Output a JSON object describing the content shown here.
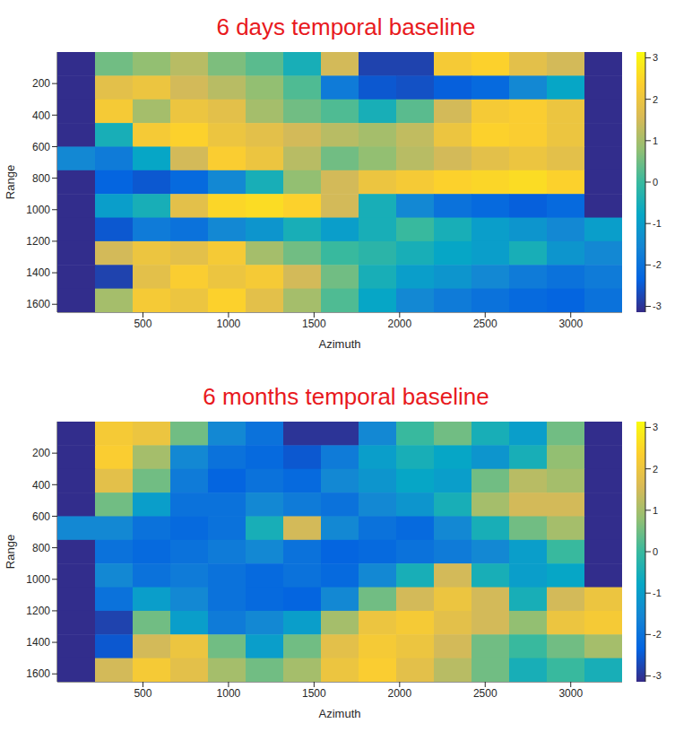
{
  "chart_data": [
    {
      "type": "heatmap",
      "title": "6 days temporal baseline",
      "xlabel": "Azimuth",
      "ylabel": "Range",
      "xlim": [
        0,
        3300
      ],
      "xticks": [
        500,
        1000,
        1500,
        2000,
        2500,
        3000
      ],
      "ylim": [
        0,
        1650
      ],
      "yticks": [
        200,
        400,
        600,
        800,
        1000,
        1200,
        1400,
        1600
      ],
      "x": [
        110,
        330,
        550,
        770,
        990,
        1210,
        1430,
        1650,
        1870,
        2090,
        2310,
        2530,
        2750,
        2970,
        3190
      ],
      "y": [
        75,
        225,
        375,
        525,
        675,
        825,
        975,
        1125,
        1275,
        1425,
        1575
      ],
      "cells": [
        [
          -3.1,
          0.5,
          0.8,
          1.2,
          0.6,
          0.3,
          -0.5,
          1.5,
          -2.8,
          -2.8,
          2.2,
          2.4,
          1.8,
          1.5,
          -3.1
        ],
        [
          -3.1,
          1.8,
          2.0,
          1.5,
          1.2,
          0.8,
          0.2,
          -1.8,
          -2.5,
          -2.6,
          -2.4,
          -2.2,
          -1.5,
          -0.8,
          -3.1
        ],
        [
          -3.1,
          2.2,
          1.0,
          2.0,
          1.8,
          1.0,
          0.5,
          0.2,
          -0.5,
          0.3,
          1.5,
          2.2,
          2.3,
          2.0,
          -3.1
        ],
        [
          -3.1,
          -0.5,
          2.2,
          2.4,
          2.0,
          1.8,
          1.5,
          1.2,
          1.0,
          1.3,
          2.0,
          2.4,
          2.3,
          2.0,
          -3.1
        ],
        [
          -1.5,
          -1.8,
          -0.8,
          1.5,
          2.3,
          2.0,
          1.2,
          0.5,
          0.8,
          1.2,
          1.5,
          1.8,
          2.0,
          1.8,
          -3.1
        ],
        [
          -3.1,
          -2.3,
          -2.5,
          -2.2,
          -1.5,
          -0.5,
          0.8,
          1.5,
          2.0,
          2.2,
          2.4,
          2.5,
          2.6,
          2.4,
          -3.1
        ],
        [
          -3.1,
          -1.0,
          -0.5,
          1.8,
          2.5,
          2.6,
          2.4,
          1.5,
          -0.5,
          -1.5,
          -2.0,
          -2.2,
          -2.4,
          -2.2,
          -3.1
        ],
        [
          -3.1,
          -2.5,
          -1.8,
          -2.0,
          -1.5,
          -1.2,
          -0.5,
          -1.0,
          -0.5,
          0.0,
          -0.5,
          -1.0,
          -1.2,
          -1.5,
          -1.0
        ],
        [
          -3.1,
          1.5,
          2.0,
          1.8,
          2.2,
          1.0,
          0.5,
          0.0,
          -0.2,
          -0.5,
          -0.8,
          -1.0,
          -0.5,
          -1.2,
          -1.5
        ],
        [
          -3.1,
          -2.8,
          1.8,
          2.3,
          2.0,
          2.2,
          1.5,
          0.5,
          -0.5,
          -1.0,
          -1.2,
          -1.5,
          -1.8,
          -2.0,
          -1.8
        ],
        [
          -3.1,
          1.0,
          2.2,
          2.0,
          2.4,
          1.8,
          1.0,
          0.2,
          -0.8,
          -1.5,
          -1.8,
          -2.0,
          -2.2,
          -2.3,
          -2.0
        ]
      ],
      "colorbar_lim": [
        -3.14,
        3.14
      ],
      "colorbar_ticks": [
        -3,
        -2,
        -1,
        0,
        1,
        2,
        3
      ]
    },
    {
      "type": "heatmap",
      "title": "6 months temporal baseline",
      "xlabel": "Azimuth",
      "ylabel": "Range",
      "xlim": [
        0,
        3300
      ],
      "xticks": [
        500,
        1000,
        1500,
        2000,
        2500,
        3000
      ],
      "ylim": [
        0,
        1650
      ],
      "yticks": [
        200,
        400,
        600,
        800,
        1000,
        1200,
        1400,
        1600
      ],
      "x": [
        110,
        330,
        550,
        770,
        990,
        1210,
        1430,
        1650,
        1870,
        2090,
        2310,
        2530,
        2750,
        2970,
        3190
      ],
      "y": [
        75,
        225,
        375,
        525,
        675,
        825,
        975,
        1125,
        1275,
        1425,
        1575
      ],
      "cells": [
        [
          -3.1,
          2.2,
          2.0,
          0.5,
          -1.5,
          -2.0,
          -3.0,
          -3.0,
          -1.5,
          0.0,
          0.5,
          -0.5,
          -1.0,
          0.5,
          -3.1
        ],
        [
          -3.1,
          2.3,
          1.0,
          -1.5,
          -2.0,
          -2.2,
          -2.5,
          -1.8,
          -1.0,
          -0.5,
          -0.8,
          -1.2,
          -0.5,
          0.8,
          -3.1
        ],
        [
          -3.1,
          1.8,
          0.5,
          -1.8,
          -2.3,
          -2.0,
          -2.2,
          -1.5,
          -1.2,
          -0.8,
          -1.0,
          0.5,
          1.2,
          1.0,
          -3.1
        ],
        [
          -3.1,
          0.5,
          -1.0,
          -2.0,
          -2.0,
          -1.5,
          -1.8,
          -2.0,
          -1.5,
          -1.2,
          -0.5,
          1.0,
          1.5,
          1.5,
          -3.1
        ],
        [
          -1.5,
          -1.5,
          -2.0,
          -2.2,
          -2.0,
          -0.5,
          1.5,
          -1.5,
          -2.0,
          -2.2,
          -1.5,
          -0.5,
          0.5,
          1.0,
          -3.1
        ],
        [
          -3.1,
          -2.0,
          -2.2,
          -2.0,
          -1.8,
          -1.5,
          -2.0,
          -2.3,
          -2.2,
          -2.0,
          -1.8,
          -1.5,
          -1.0,
          0.0,
          -3.1
        ],
        [
          -3.1,
          -1.5,
          -2.0,
          -1.8,
          -2.0,
          -2.2,
          -2.0,
          -2.2,
          -1.5,
          -0.5,
          1.5,
          -0.5,
          -1.0,
          -0.8,
          -3.1
        ],
        [
          -3.1,
          -2.0,
          -1.0,
          -1.5,
          -2.0,
          -2.2,
          -2.3,
          -1.5,
          0.5,
          1.5,
          2.0,
          1.5,
          -0.5,
          1.5,
          2.0
        ],
        [
          -3.1,
          -2.8,
          0.5,
          -1.0,
          -1.8,
          -1.5,
          -1.0,
          1.0,
          2.0,
          2.2,
          1.8,
          1.5,
          0.8,
          2.0,
          2.2
        ],
        [
          -3.1,
          -2.5,
          1.5,
          2.0,
          0.5,
          -1.0,
          0.5,
          1.8,
          2.2,
          2.0,
          1.5,
          0.5,
          0.0,
          0.5,
          1.0
        ],
        [
          -3.1,
          1.5,
          2.2,
          1.8,
          1.0,
          0.5,
          1.0,
          2.0,
          2.3,
          1.8,
          1.2,
          0.5,
          -0.5,
          0.0,
          -0.5
        ]
      ],
      "colorbar_lim": [
        -3.14,
        3.14
      ],
      "colorbar_ticks": [
        -3,
        -2,
        -1,
        0,
        1,
        2,
        3
      ]
    }
  ]
}
